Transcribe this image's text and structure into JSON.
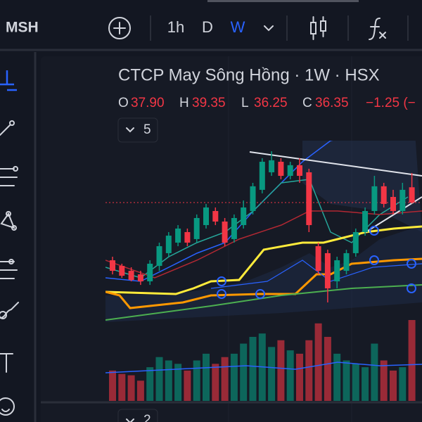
{
  "toolbar": {
    "symbol": "MSH",
    "intervals": [
      "1h",
      "D",
      "W"
    ],
    "active_interval": 2
  },
  "legend": {
    "title": "CTCP May Sông Hồng · 1W · HSX",
    "ohlc": [
      {
        "key": "O",
        "value": "37.90"
      },
      {
        "key": "H",
        "value": "39.35"
      },
      {
        "key": "L",
        "value": "36.25"
      },
      {
        "key": "C",
        "value": "36.35"
      }
    ],
    "change": "−1.25 (−",
    "indicator_count": "5",
    "pane_count": "2"
  },
  "chart": {
    "up_color": "#089981",
    "down_color": "#f23645",
    "candles": [
      [
        30.49,
        30.85,
        29.06,
        29.42
      ],
      [
        29.92,
        30.14,
        28.71,
        28.92
      ],
      [
        29.42,
        29.78,
        28.35,
        28.49
      ],
      [
        29.06,
        29.42,
        27.99,
        28.35
      ],
      [
        28.35,
        30.49,
        27.99,
        30.14
      ],
      [
        29.92,
        32.28,
        29.42,
        31.92
      ],
      [
        31.21,
        33.35,
        30.85,
        32.99
      ],
      [
        32.28,
        34.06,
        31.92,
        33.71
      ],
      [
        33.35,
        33.71,
        31.92,
        32.28
      ],
      [
        32.64,
        35.14,
        32.28,
        34.78
      ],
      [
        34.06,
        36.21,
        33.71,
        35.85
      ],
      [
        35.49,
        35.85,
        34.06,
        34.42
      ],
      [
        34.42,
        34.78,
        31.92,
        32.28
      ],
      [
        32.64,
        35.14,
        32.28,
        34.78
      ],
      [
        34.06,
        36.56,
        33.71,
        35.85
      ],
      [
        35.49,
        38.35,
        35.14,
        38.0
      ],
      [
        37.64,
        40.85,
        37.28,
        40.49
      ],
      [
        39.42,
        41.56,
        39.06,
        40.64
      ],
      [
        40.49,
        40.85,
        38.71,
        39.06
      ],
      [
        39.06,
        40.49,
        38.71,
        40.14
      ],
      [
        40.14,
        40.85,
        38.35,
        39.06
      ],
      [
        39.42,
        39.78,
        33.35,
        34.06
      ],
      [
        31.92,
        32.28,
        29.06,
        29.42
      ],
      [
        31.21,
        31.56,
        26.21,
        27.64
      ],
      [
        28.35,
        30.85,
        27.64,
        30.49
      ],
      [
        29.42,
        31.56,
        29.06,
        31.21
      ],
      [
        31.21,
        33.71,
        30.85,
        33.35
      ],
      [
        33.35,
        35.85,
        32.99,
        35.49
      ],
      [
        35.49,
        39.06,
        35.14,
        38.0
      ],
      [
        38.0,
        38.35,
        35.85,
        36.21
      ],
      [
        36.92,
        37.64,
        35.14,
        35.49
      ],
      [
        35.49,
        38.35,
        35.14,
        37.64
      ],
      [
        37.9,
        39.35,
        36.25,
        36.35
      ]
    ],
    "volumes": [
      45,
      40,
      38,
      30,
      50,
      65,
      60,
      55,
      45,
      60,
      70,
      55,
      65,
      70,
      85,
      95,
      100,
      80,
      90,
      75,
      70,
      90,
      115,
      95,
      70,
      60,
      55,
      50,
      85,
      60,
      45,
      50,
      120
    ]
  }
}
